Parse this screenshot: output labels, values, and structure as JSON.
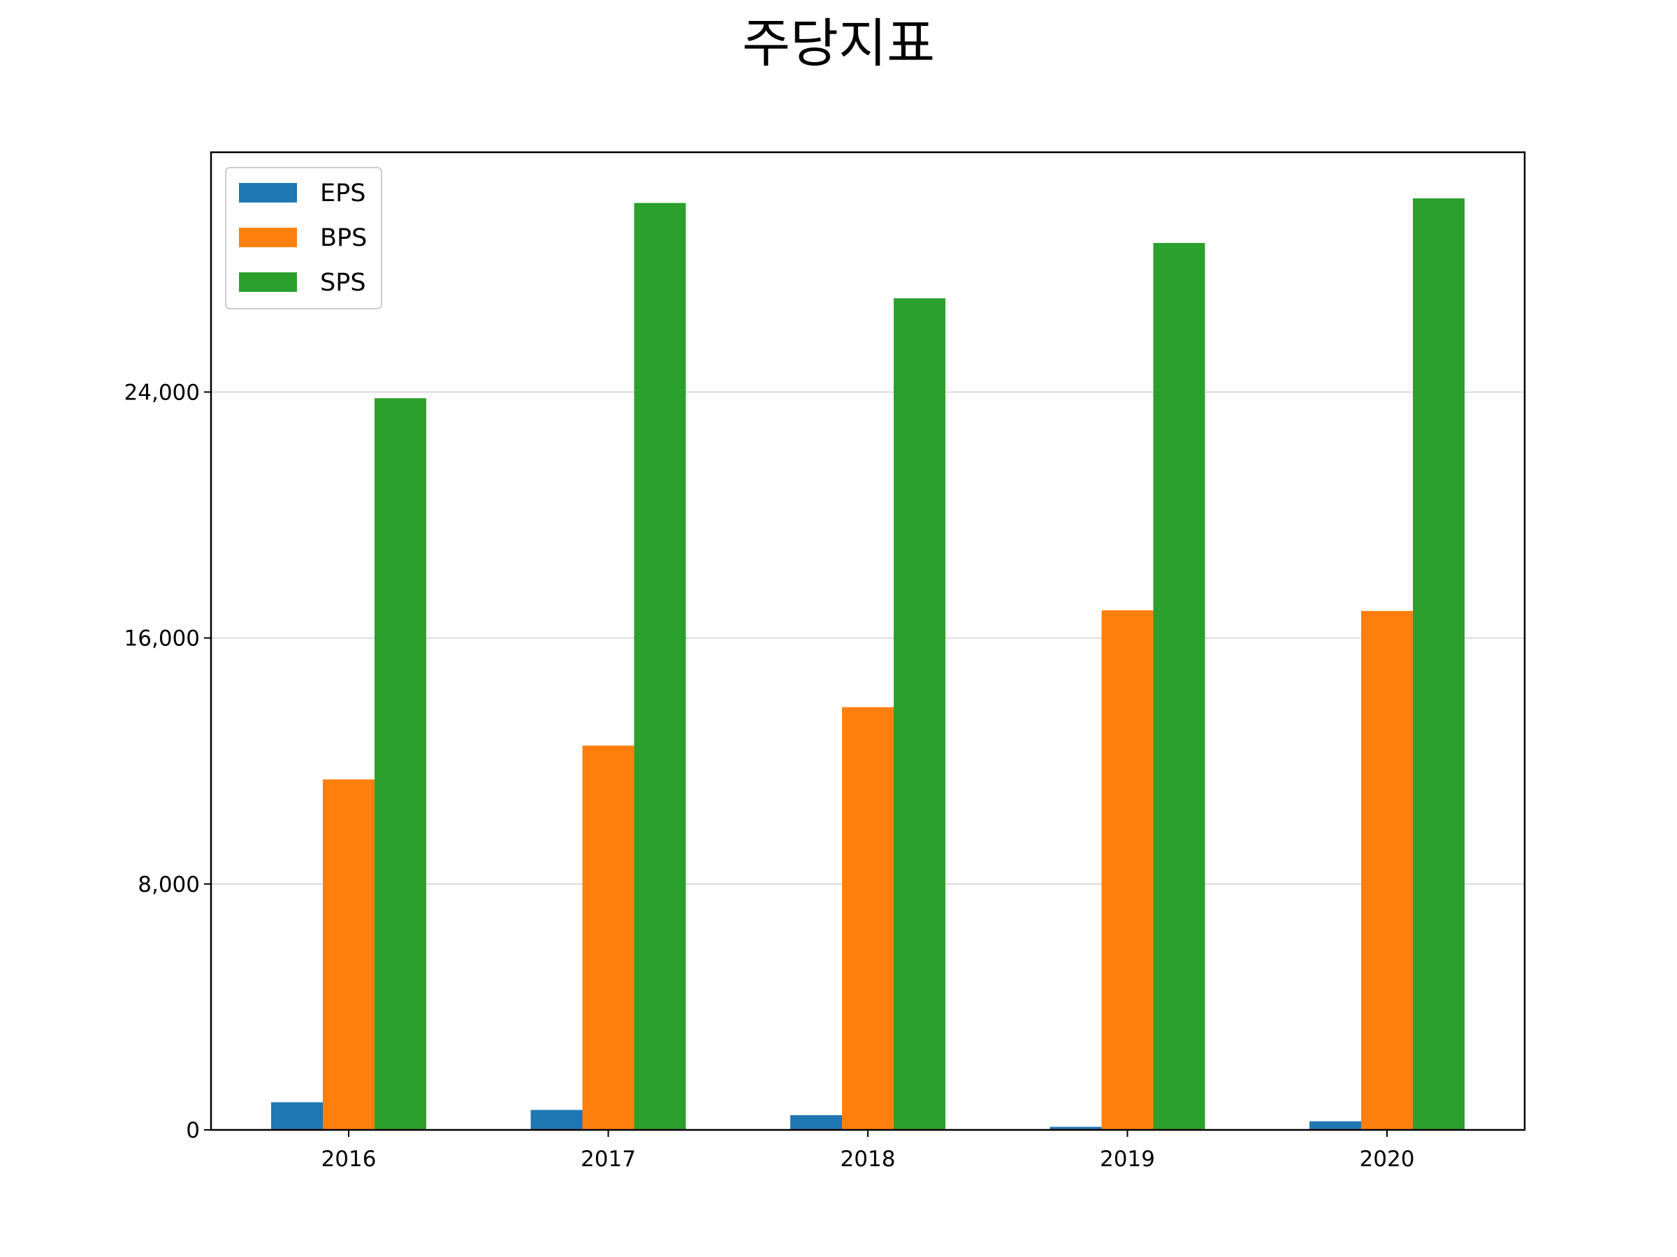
{
  "chart_data": {
    "type": "bar",
    "title": "주당지표",
    "xlabel": "",
    "ylabel": "",
    "categories": [
      "2016",
      "2017",
      "2018",
      "2019",
      "2020"
    ],
    "series": [
      {
        "name": "EPS",
        "color": "#1f77b4",
        "values": [
          900,
          650,
          480,
          100,
          280
        ]
      },
      {
        "name": "BPS",
        "color": "#ff7f0e",
        "values": [
          11400,
          12500,
          13750,
          16900,
          16880
        ]
      },
      {
        "name": "SPS",
        "color": "#2ca02c",
        "values": [
          23800,
          30150,
          27050,
          28850,
          30300
        ]
      }
    ],
    "ylim": [
      0,
      31800
    ],
    "yticks": [
      0,
      8000,
      16000,
      24000
    ],
    "ytick_labels": [
      "0",
      "8,000",
      "16,000",
      "24,000"
    ],
    "grid": "horizontal",
    "legend": "upper-left"
  }
}
